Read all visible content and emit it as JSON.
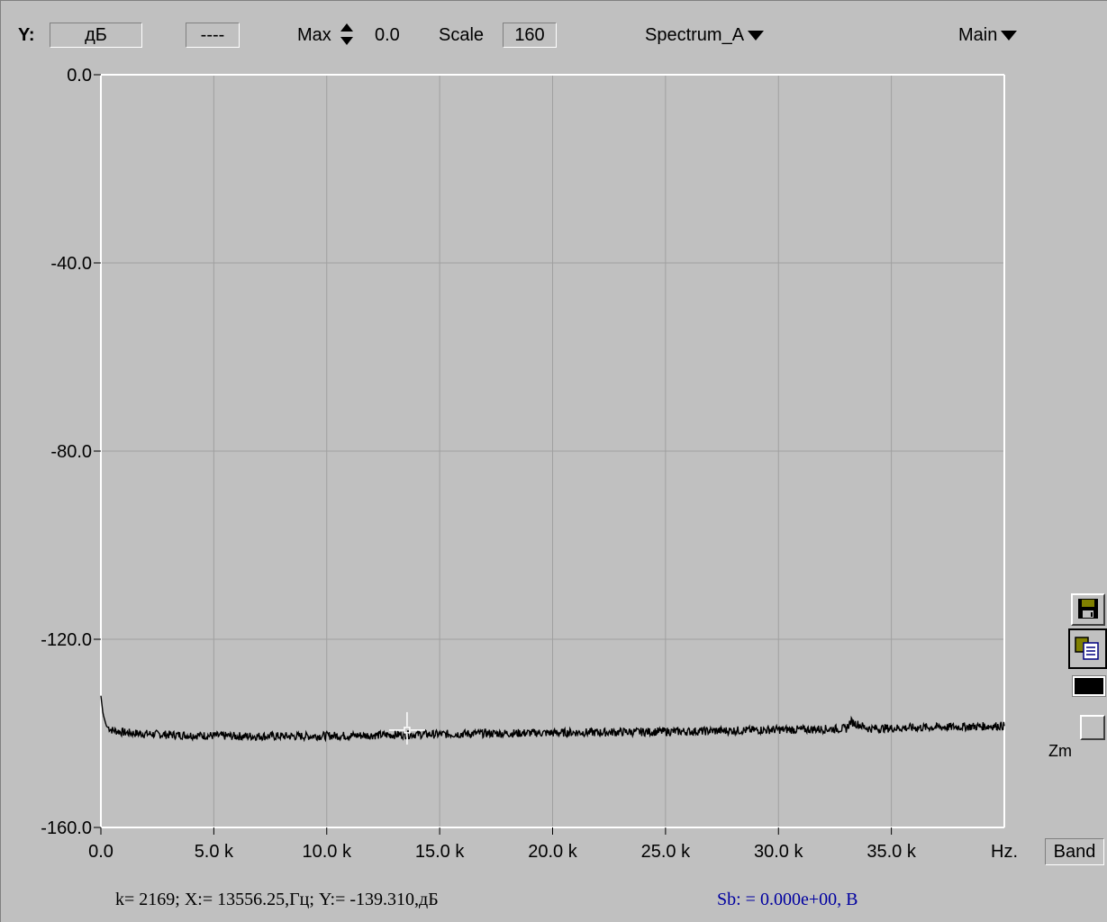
{
  "toolbar": {
    "y_label": "Y:",
    "units_value": "дБ",
    "dash_value": "----",
    "max_label": "Max",
    "max_value": "0.0",
    "scale_label": "Scale",
    "scale_value": "160",
    "spectrum_label": "Spectrum_A",
    "main_label": "Main"
  },
  "side": {
    "zm_label": "Zm",
    "band_label": "Band",
    "save_icon": "floppy-disk-icon",
    "copy_icon": "copy-icon",
    "color_icon": "color-swatch-icon",
    "swatch_color": "#000000"
  },
  "status": {
    "cursor_readout": "k= 2169; X:= 13556.25,Гц; Y:= -139.310,дБ",
    "sb_readout": "Sb: = 0.000e+00, В",
    "sb_color": "#0000a0"
  },
  "chart_data": {
    "type": "line",
    "xlim": [
      0,
      40000
    ],
    "ylim": [
      -160,
      0
    ],
    "x_ticks": [
      0,
      5000,
      10000,
      15000,
      20000,
      25000,
      30000,
      35000
    ],
    "x_tick_labels": [
      "0.0",
      "5.0 k",
      "10.0 k",
      "15.0 k",
      "20.0 k",
      "25.0 k",
      "30.0 k",
      "35.0 k"
    ],
    "x_end_label": "Hz.",
    "y_ticks": [
      0,
      -40,
      -80,
      -120,
      -160
    ],
    "y_tick_labels": [
      "0.0",
      "-40.0",
      "-80.0",
      "-120.0",
      "-160.0"
    ],
    "grid": true,
    "background": "#c0c0c0",
    "line_color": "#000000",
    "grid_color": "#a0a0a0",
    "axis_color": "#ffffff",
    "cursor": {
      "x": 13556.25,
      "y": -139.31
    },
    "series": [
      {
        "x": [
          0,
          100,
          250,
          500,
          1000,
          1500,
          2000,
          2500,
          3000,
          4000,
          5000,
          6000,
          7000,
          8000,
          9000,
          10000,
          11000,
          12000,
          13000,
          14000,
          15000,
          16000,
          17000,
          18000,
          19000,
          20000,
          21000,
          22000,
          23000,
          24000,
          25000,
          26000,
          27000,
          28000,
          29000,
          30000,
          31000,
          32000,
          33000,
          33200,
          34000,
          35000,
          36000,
          37000,
          38000,
          39000,
          40000
        ],
        "y": [
          -132,
          -136,
          -138.5,
          -139.3,
          -139.8,
          -140,
          -140.1,
          -140.2,
          -140.3,
          -140.4,
          -140.5,
          -140.6,
          -140.6,
          -140.6,
          -140.6,
          -140.5,
          -140.5,
          -140.4,
          -140.3,
          -140.2,
          -140.2,
          -140.1,
          -140.0,
          -140.0,
          -139.9,
          -139.9,
          -139.8,
          -139.8,
          -139.7,
          -139.7,
          -139.6,
          -139.6,
          -139.5,
          -139.4,
          -139.3,
          -139.2,
          -139.2,
          -139.1,
          -139.0,
          -137.5,
          -139.0,
          -138.9,
          -138.8,
          -138.7,
          -138.6,
          -138.5,
          -138.4
        ]
      }
    ]
  }
}
